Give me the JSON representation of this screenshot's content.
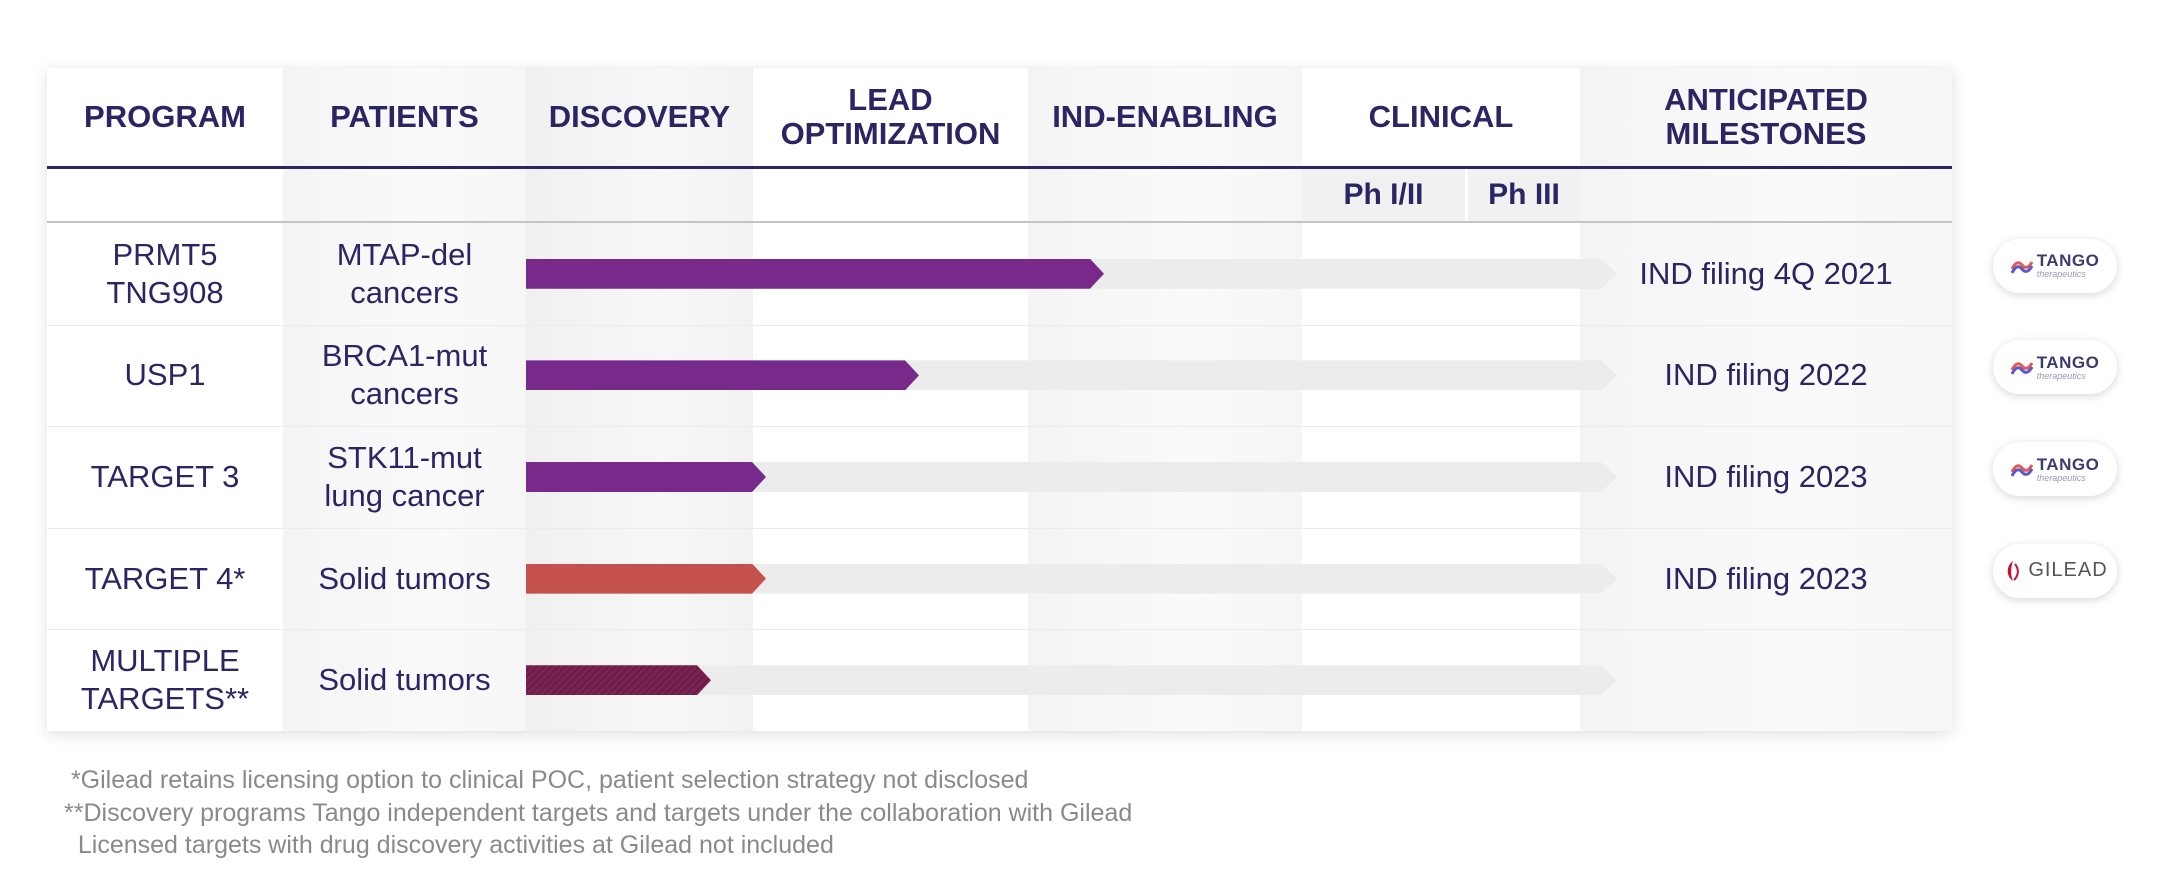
{
  "header": {
    "program": "PROGRAM",
    "patients": "PATIENTS",
    "discovery": "DISCOVERY",
    "lead_line1": "LEAD",
    "lead_line2": "OPTIMIZATION",
    "ind_enabling": "IND-ENABLING",
    "clinical": "CLINICAL",
    "milestones_line1": "ANTICIPATED",
    "milestones_line2": "MILESTONES",
    "phase1": "Ph I/II",
    "phase3": "Ph III"
  },
  "programs": [
    {
      "name_line1": "PRMT5",
      "name_line2": "TNG908",
      "patients_line1": "MTAP-del",
      "patients_line2": "cancers",
      "progress": 0.53,
      "milestone": "IND filing 4Q 2021",
      "partner": "Tango"
    },
    {
      "name_line1": "USP1",
      "name_line2": "",
      "patients_line1": "BRCA1-mut",
      "patients_line2": "cancers",
      "progress": 0.36,
      "milestone": "IND filing 2022",
      "partner": "Tango"
    },
    {
      "name_line1": "TARGET 3",
      "name_line2": "",
      "patients_line1": "STK11-mut",
      "patients_line2": "lung cancer",
      "progress": 0.22,
      "milestone": "IND filing 2023",
      "partner": "Tango"
    },
    {
      "name_line1": "TARGET 4*",
      "name_line2": "",
      "patients_line1": "Solid tumors",
      "patients_line2": "",
      "progress": 0.22,
      "milestone": "IND filing 2023",
      "partner": "Gilead"
    },
    {
      "name_line1": "MULTIPLE",
      "name_line2": "TARGETS**",
      "patients_line1": "Solid tumors",
      "patients_line2": "",
      "progress": 0.17,
      "milestone": "",
      "partner": ""
    }
  ],
  "logos": {
    "tango_main": "TANGO",
    "tango_sub": "therapeutics",
    "gilead": "GILEAD"
  },
  "colors": {
    "navy": "#2b2563",
    "purple": "#772a8a",
    "red": "#c4514b",
    "maroon": "#7b2350",
    "track": "#ececec"
  },
  "footnotes": [
    " *Gilead retains licensing option to clinical POC, patient selection strategy not disclosed",
    "**Discovery programs Tango independent targets and targets under the collaboration with Gilead",
    "  Licensed targets with drug discovery activities at Gilead not included"
  ]
}
